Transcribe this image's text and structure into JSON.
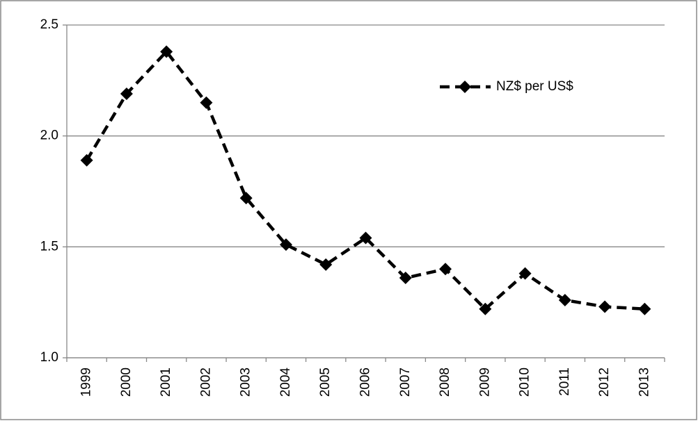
{
  "chart_data": {
    "type": "line",
    "categories": [
      "1999",
      "2000",
      "2001",
      "2002",
      "2003",
      "2004",
      "2005",
      "2006",
      "2007",
      "2008",
      "2009",
      "2010",
      "2011",
      "2012",
      "2013"
    ],
    "series": [
      {
        "name": "NZ$ per US$",
        "color": "#000000",
        "values": [
          1.89,
          2.19,
          2.38,
          2.15,
          1.72,
          1.51,
          1.42,
          1.54,
          1.36,
          1.4,
          1.22,
          1.38,
          1.26,
          1.23,
          1.22
        ]
      }
    ],
    "ylim": [
      1,
      2.5
    ],
    "yticks": [
      {
        "value": 1,
        "label": "1.0"
      },
      {
        "value": 1.5,
        "label": "1.5"
      },
      {
        "value": 2,
        "label": "2.0"
      },
      2.5
    ],
    "grid": true,
    "legend": "upper right"
  }
}
